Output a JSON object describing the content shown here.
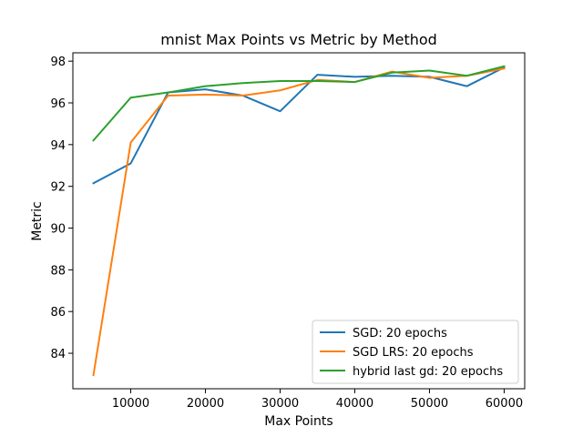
{
  "chart_data": {
    "type": "line",
    "title": "mnist Max Points vs Metric by Method",
    "xlabel": "Max Points",
    "ylabel": "Metric",
    "xlim": [
      2250,
      62750
    ],
    "ylim": [
      82.3,
      98.4
    ],
    "xticks": [
      10000,
      20000,
      30000,
      40000,
      50000,
      60000
    ],
    "yticks": [
      84,
      86,
      88,
      90,
      92,
      94,
      96,
      98
    ],
    "grid": false,
    "legend_position": "lower-right",
    "x": [
      5000,
      10000,
      15000,
      20000,
      25000,
      30000,
      35000,
      40000,
      45000,
      50000,
      55000,
      60000
    ],
    "series": [
      {
        "name": "SGD: 20 epochs",
        "color": "#1f77b4",
        "values": [
          92.15,
          93.1,
          96.5,
          96.65,
          96.35,
          95.6,
          97.35,
          97.25,
          97.3,
          97.25,
          96.8,
          97.7
        ]
      },
      {
        "name": "SGD LRS: 20 epochs",
        "color": "#ff7f0e",
        "values": [
          82.95,
          94.1,
          96.35,
          96.4,
          96.35,
          96.6,
          97.1,
          97.0,
          97.5,
          97.2,
          97.3,
          97.65
        ]
      },
      {
        "name": "hybrid last gd: 20 epochs",
        "color": "#2ca02c",
        "values": [
          94.2,
          96.25,
          96.5,
          96.8,
          96.95,
          97.05,
          97.05,
          97.0,
          97.45,
          97.55,
          97.3,
          97.75
        ]
      }
    ]
  }
}
